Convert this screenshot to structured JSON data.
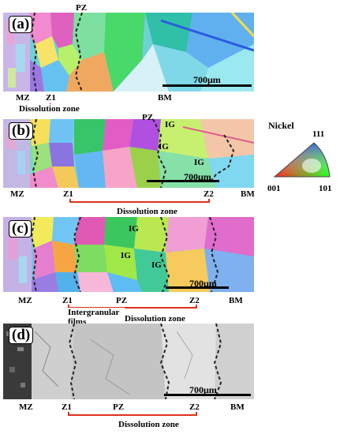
{
  "panels": [
    {
      "label": "(a)",
      "zones": {
        "mz": "MZ",
        "z1": "Z1",
        "pz": "PZ",
        "bm": "BM"
      },
      "scale": "700μm",
      "dissolution": "Dissolution zone"
    },
    {
      "label": "(b)",
      "zones": {
        "mz": "MZ",
        "z1": "Z1",
        "pz": "PZ",
        "z2": "Z2",
        "bm": "BM"
      },
      "ig": "IG",
      "scale": "700μm",
      "dissolution": "Dissolution zone"
    },
    {
      "label": "(c)",
      "zones": {
        "mz": "MZ",
        "z1": "Z1",
        "pz": "PZ",
        "z2": "Z2",
        "bm": "BM"
      },
      "ig": "IG",
      "scale": "700μm",
      "dissolution": "Dissolution zone"
    },
    {
      "label": "(d)",
      "zones": {
        "mz": "MZ",
        "z1": "Z1",
        "pz": "PZ",
        "z2": "Z2",
        "bm": "BM"
      },
      "films": "Intergranular films",
      "scale": "700μm",
      "dissolution": "Dissolution zone"
    }
  ],
  "legend": {
    "title": "Nickel",
    "top": "111",
    "left": "001",
    "right": "101"
  },
  "colors": {
    "arrow": "#e0301e",
    "boundary": "#222222"
  }
}
